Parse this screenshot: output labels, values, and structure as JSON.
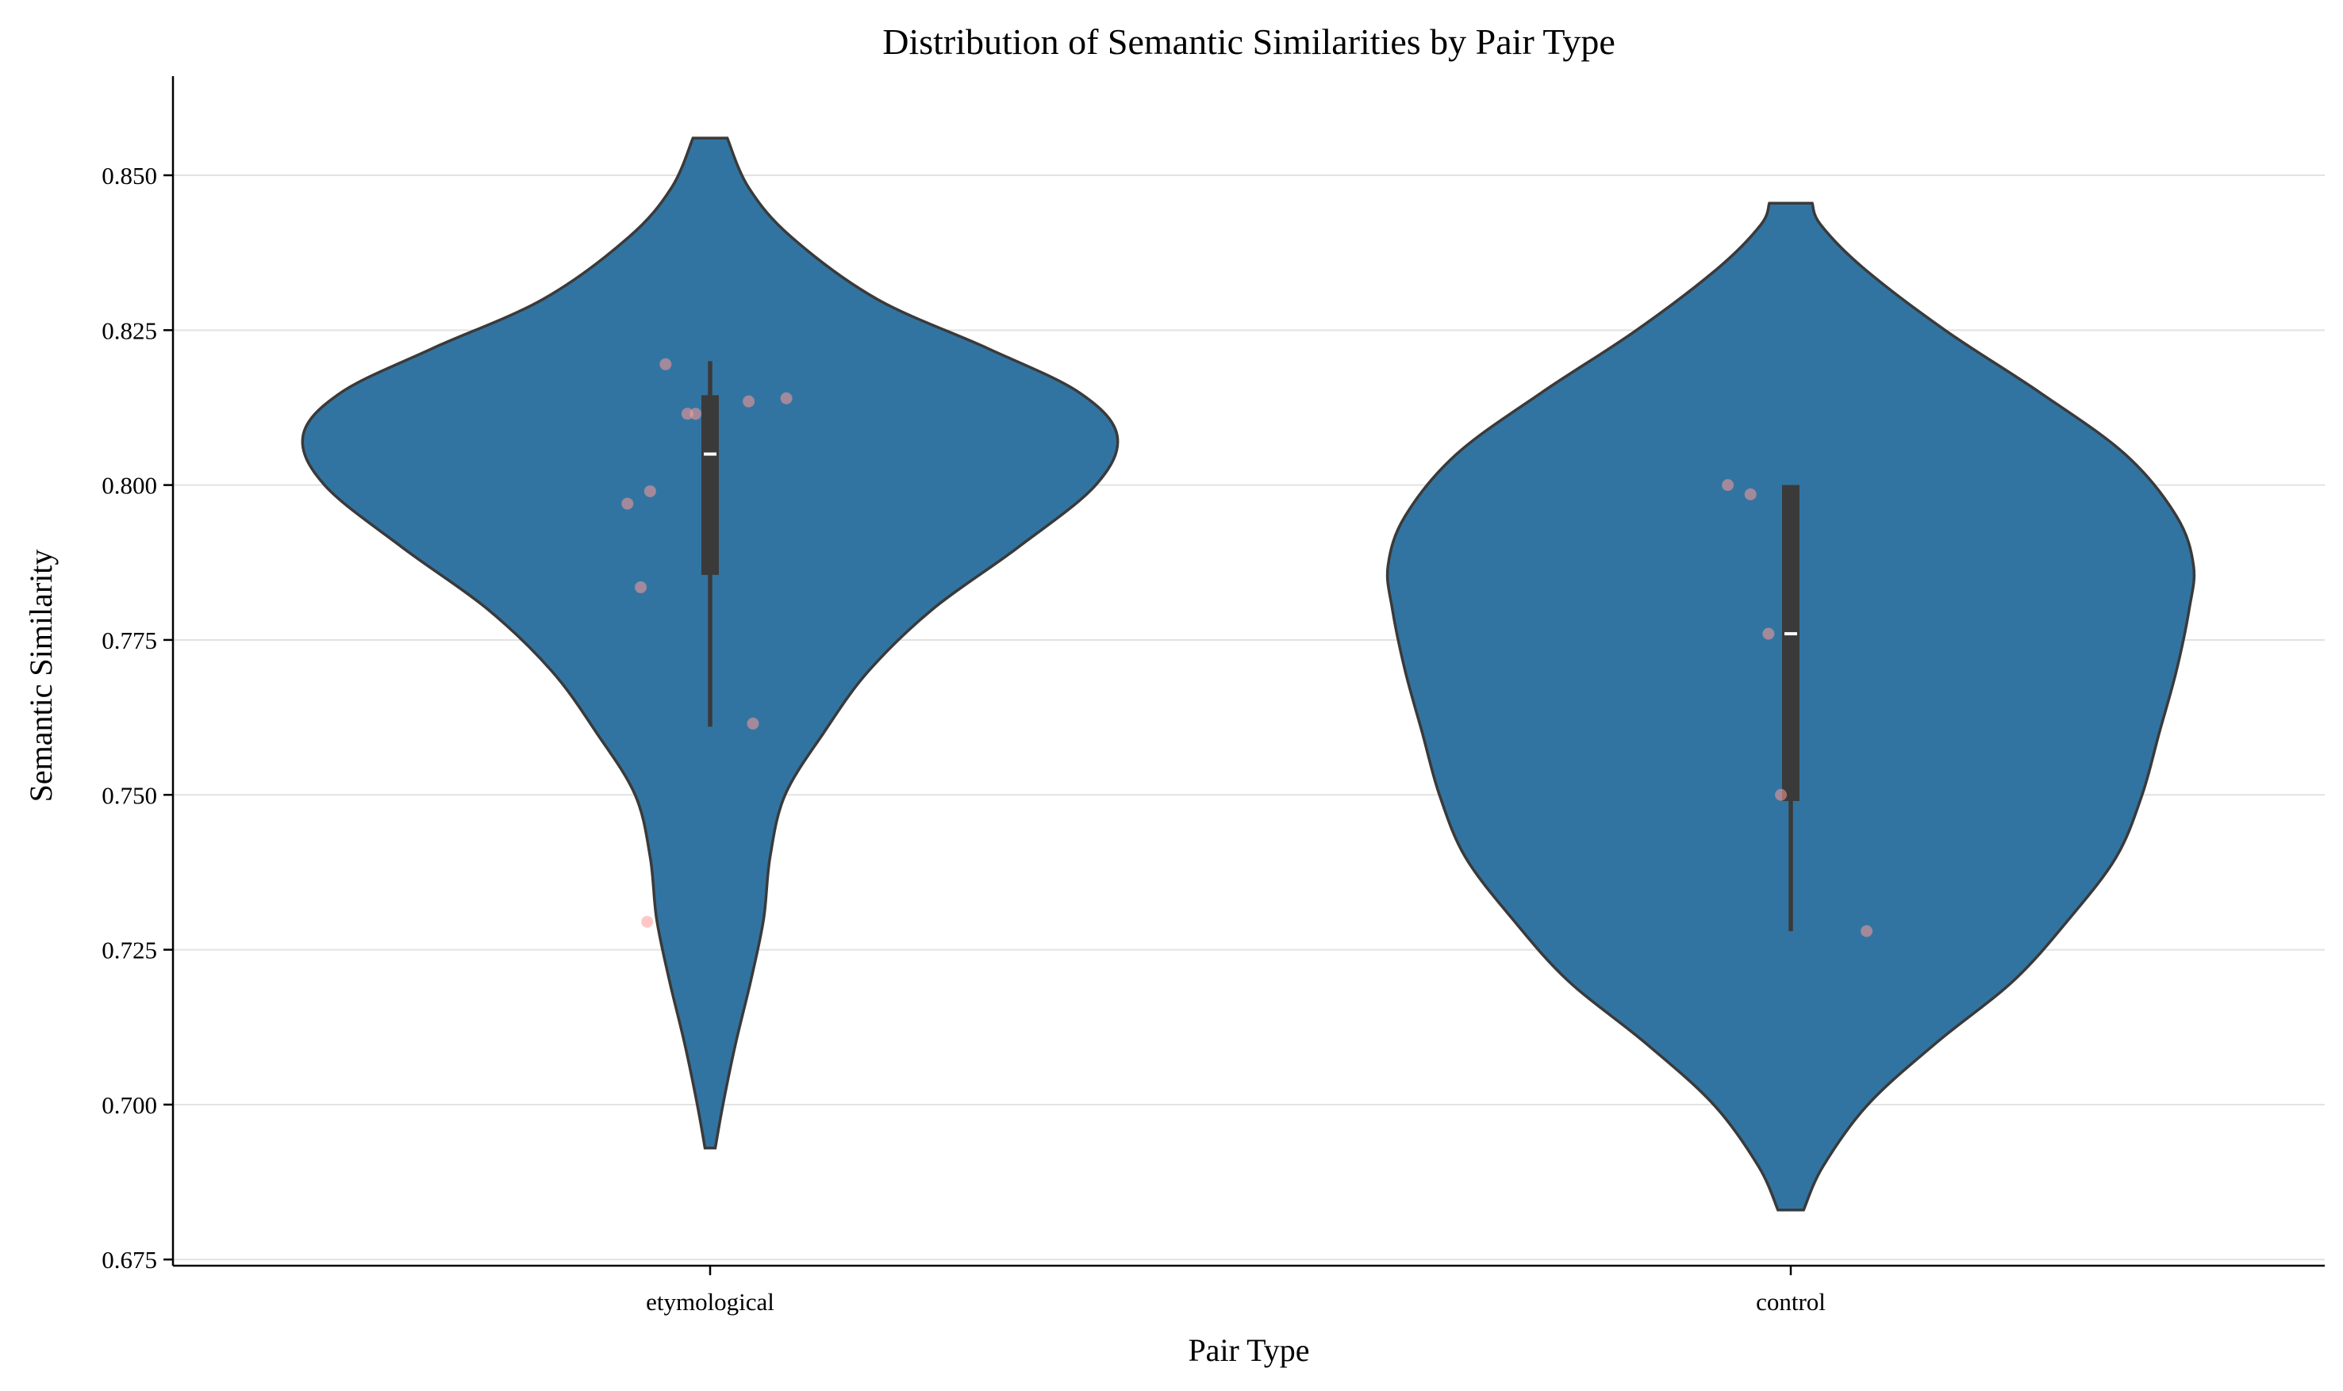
{
  "chart_data": {
    "type": "violin",
    "title": "Distribution of Semantic Similarities by Pair Type",
    "xlabel": "Pair Type",
    "ylabel": "Semantic Similarity",
    "ylim": [
      0.674,
      0.866
    ],
    "yticks": [
      "0.675",
      "0.700",
      "0.725",
      "0.750",
      "0.775",
      "0.800",
      "0.825",
      "0.850"
    ],
    "grid": "horizontal",
    "categories": [
      "etymological",
      "control"
    ],
    "colors": {
      "violin_fill": "#3274a1",
      "violin_edge": "#3a3a3a",
      "box": "#3a3a3a",
      "median": "#ffffff",
      "points": "#ff9a98"
    },
    "violins": [
      {
        "name": "etymological",
        "range": [
          0.693,
          0.856
        ],
        "half_width_profile": [
          [
            0.693,
            0.012
          ],
          [
            0.7,
            0.03
          ],
          [
            0.71,
            0.06
          ],
          [
            0.72,
            0.095
          ],
          [
            0.73,
            0.125
          ],
          [
            0.74,
            0.14
          ],
          [
            0.75,
            0.175
          ],
          [
            0.76,
            0.265
          ],
          [
            0.77,
            0.37
          ],
          [
            0.78,
            0.52
          ],
          [
            0.79,
            0.72
          ],
          [
            0.8,
            0.9
          ],
          [
            0.808,
            0.95
          ],
          [
            0.815,
            0.86
          ],
          [
            0.822,
            0.65
          ],
          [
            0.83,
            0.39
          ],
          [
            0.84,
            0.19
          ],
          [
            0.848,
            0.09
          ],
          [
            0.856,
            0.04
          ]
        ],
        "box": {
          "q1": 0.7855,
          "median": 0.805,
          "q3": 0.8145,
          "whisker_low": 0.761,
          "whisker_high": 0.82
        },
        "points": [
          [
            -0.104,
            0.8195
          ],
          [
            -0.034,
            0.8115
          ],
          [
            -0.053,
            0.8115
          ],
          [
            0.09,
            0.8135
          ],
          [
            0.178,
            0.814
          ],
          [
            -0.193,
            0.797
          ],
          [
            -0.14,
            0.799
          ],
          [
            -0.162,
            0.7835
          ],
          [
            0.1,
            0.7615
          ],
          [
            -0.147,
            0.7295
          ]
        ]
      },
      {
        "name": "control",
        "range": [
          0.683,
          0.8455
        ],
        "half_width_profile": [
          [
            0.683,
            0.03
          ],
          [
            0.69,
            0.075
          ],
          [
            0.7,
            0.18
          ],
          [
            0.71,
            0.34
          ],
          [
            0.72,
            0.52
          ],
          [
            0.73,
            0.65
          ],
          [
            0.74,
            0.76
          ],
          [
            0.75,
            0.82
          ],
          [
            0.76,
            0.86
          ],
          [
            0.77,
            0.9
          ],
          [
            0.78,
            0.93
          ],
          [
            0.787,
            0.94
          ],
          [
            0.795,
            0.9
          ],
          [
            0.805,
            0.78
          ],
          [
            0.815,
            0.58
          ],
          [
            0.825,
            0.36
          ],
          [
            0.835,
            0.17
          ],
          [
            0.842,
            0.07
          ],
          [
            0.8455,
            0.05
          ]
        ],
        "box": {
          "q1": 0.749,
          "median": 0.776,
          "q3": 0.8,
          "whisker_low": 0.728,
          "whisker_high": 0.8
        },
        "points": [
          [
            -0.147,
            0.8
          ],
          [
            -0.094,
            0.7985
          ],
          [
            -0.052,
            0.776
          ],
          [
            -0.023,
            0.75
          ],
          [
            0.177,
            0.728
          ]
        ]
      }
    ]
  }
}
